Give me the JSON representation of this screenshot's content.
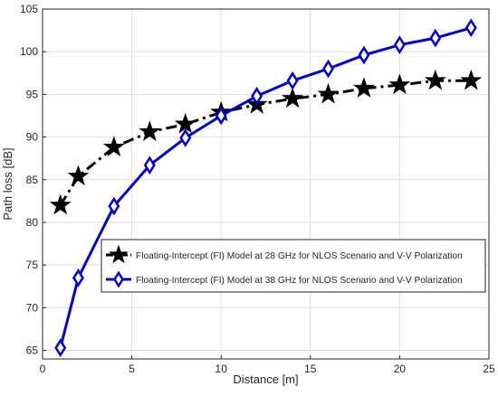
{
  "chart_data": {
    "type": "line",
    "title": "",
    "xlabel": "Distance [m]",
    "ylabel": "Path loss [dB]",
    "xlim": [
      0,
      25
    ],
    "ylim": [
      64,
      105
    ],
    "xticks": [
      0,
      5,
      10,
      15,
      20,
      25
    ],
    "yticks": [
      65,
      70,
      75,
      80,
      85,
      90,
      95,
      100,
      105
    ],
    "grid": true,
    "legend_position": "center-right",
    "series": [
      {
        "name": "Floating-Intercept (FI) Model at 28 GHz for NLOS Scenario and V-V Polarization",
        "color": "#000000",
        "line_style": "dash-dot",
        "marker": "star-icon",
        "x": [
          1,
          2,
          4,
          6,
          8,
          10,
          12,
          14,
          16,
          18,
          20,
          22,
          24
        ],
        "y": [
          82.0,
          85.4,
          88.8,
          90.6,
          91.5,
          92.9,
          93.8,
          94.5,
          95.0,
          95.7,
          96.1,
          96.6,
          96.6
        ]
      },
      {
        "name": "Floating-Intercept (FI) Model at 38 GHz for NLOS Scenario and V-V Polarization",
        "color": "#0000cc",
        "line_style": "solid",
        "marker": "diamond-icon",
        "x": [
          1,
          2,
          4,
          6,
          8,
          10,
          12,
          14,
          16,
          18,
          20,
          22,
          24
        ],
        "y": [
          65.3,
          73.5,
          81.9,
          86.7,
          89.9,
          92.5,
          94.8,
          96.6,
          98.0,
          99.6,
          100.8,
          101.6,
          102.8
        ]
      }
    ]
  }
}
